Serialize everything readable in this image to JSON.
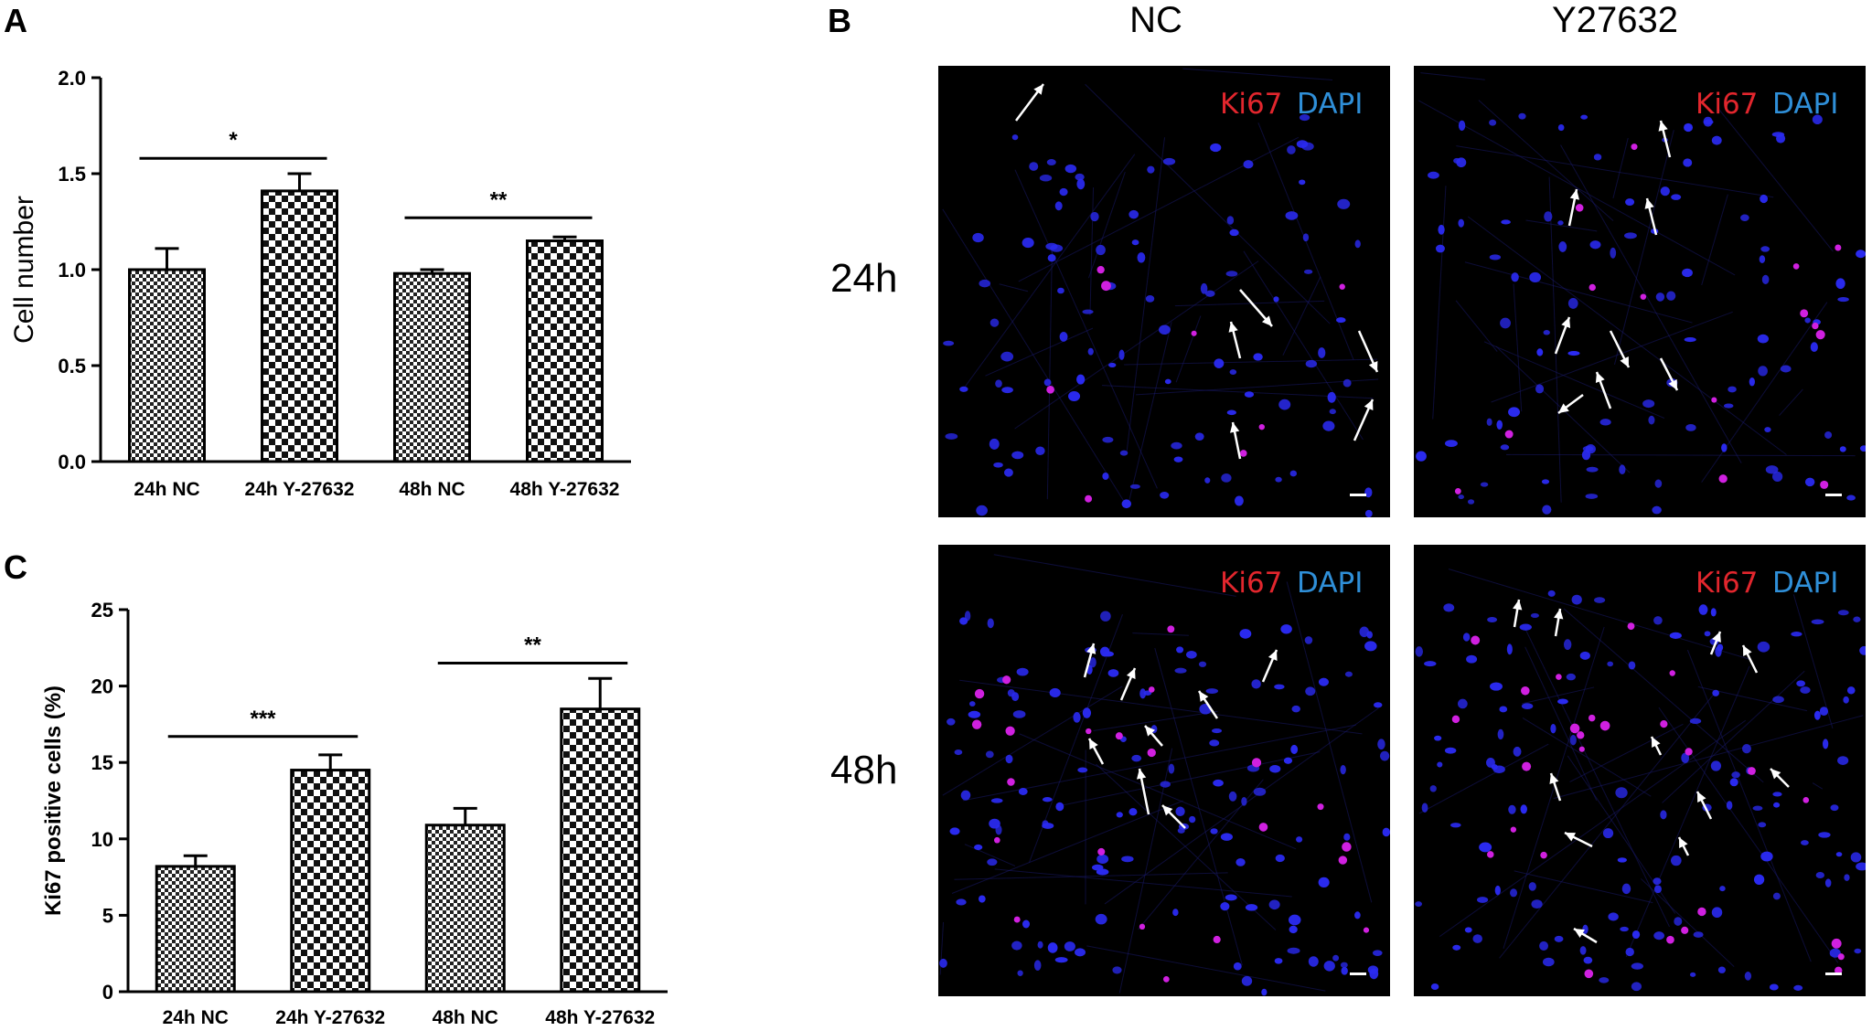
{
  "panels": {
    "a": {
      "letter": "A"
    },
    "b": {
      "letter": "B"
    },
    "c": {
      "letter": "C"
    }
  },
  "micrographs": {
    "columns": [
      "NC",
      "Y27632"
    ],
    "rows": [
      "24h",
      "48h"
    ],
    "stain_ki67": "Ki67",
    "stain_dapi": "DAPI",
    "colors": {
      "background": "#000000",
      "dapi": "#2a2af0",
      "ki67": "#d020e0",
      "arrow": "#ffffff"
    }
  },
  "chart_data": [
    {
      "type": "bar",
      "panel": "A",
      "categories": [
        "24h NC",
        "24h Y-27632",
        "48h NC",
        "48h Y-27632"
      ],
      "values": [
        1.0,
        1.41,
        0.98,
        1.15
      ],
      "errors": [
        0.11,
        0.09,
        0.02,
        0.02
      ],
      "ylabel": "Cell number",
      "ylim": [
        0,
        2.0
      ],
      "yticks": [
        "0.0",
        "0.5",
        "1.0",
        "1.5",
        "2.0"
      ],
      "yticks_values": [
        0,
        0.5,
        1.0,
        1.5,
        2.0
      ],
      "grid": false,
      "significance": [
        {
          "from": 0,
          "to": 1,
          "label": "*",
          "y": 1.58
        },
        {
          "from": 2,
          "to": 3,
          "label": "**",
          "y": 1.27
        }
      ],
      "bar_patterns": [
        "small-check",
        "large-check",
        "small-check",
        "large-check"
      ]
    },
    {
      "type": "bar",
      "panel": "C",
      "categories": [
        "24h NC",
        "24h Y-27632",
        "48h NC",
        "48h Y-27632"
      ],
      "values": [
        8.2,
        14.5,
        10.9,
        18.5
      ],
      "errors": [
        0.7,
        1.0,
        1.1,
        2.0
      ],
      "ylabel": "Ki67 positive cells (%)",
      "ylim": [
        0,
        25
      ],
      "yticks": [
        "0",
        "5",
        "10",
        "15",
        "20",
        "25"
      ],
      "yticks_values": [
        0,
        5,
        10,
        15,
        20,
        25
      ],
      "grid": false,
      "significance": [
        {
          "from": 0,
          "to": 1,
          "label": "***",
          "y": 16.7
        },
        {
          "from": 2,
          "to": 3,
          "label": "**",
          "y": 21.5
        }
      ],
      "bar_patterns": [
        "small-check",
        "large-check",
        "small-check",
        "large-check"
      ]
    }
  ]
}
